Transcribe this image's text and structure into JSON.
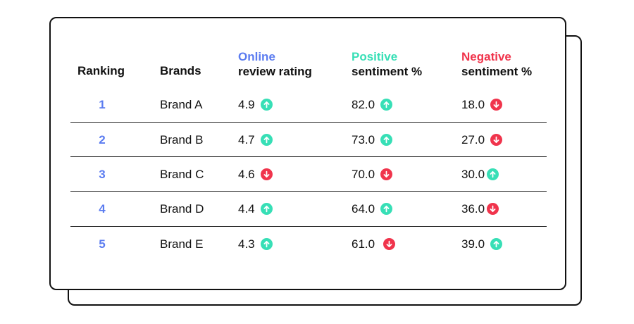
{
  "colors": {
    "rank": "#5b7cf0",
    "online_header": "#5b7cf0",
    "positive_header": "#37dfb6",
    "negative_header": "#f0344c",
    "up_indicator": "#37dfb6",
    "down_indicator": "#f0344c"
  },
  "table": {
    "headers": {
      "ranking": "Ranking",
      "brands": "Brands",
      "online_accent": "Online",
      "online_rest": "review rating",
      "positive_accent": "Positive",
      "positive_rest": "sentiment %",
      "negative_accent": "Negative",
      "negative_rest": "sentiment %"
    },
    "rows": [
      {
        "rank": "1",
        "brand": "Brand A",
        "online": "4.9",
        "online_trend": "up-arrow-icon",
        "positive": "82.0",
        "positive_trend": "up-arrow-icon",
        "negative": "18.0",
        "negative_trend": "down-arrow-icon"
      },
      {
        "rank": "2",
        "brand": "Brand B",
        "online": "4.7",
        "online_trend": "up-arrow-icon",
        "positive": "73.0",
        "positive_trend": "up-arrow-icon",
        "negative": "27.0",
        "negative_trend": "down-arrow-icon"
      },
      {
        "rank": "3",
        "brand": "Brand C",
        "online": "4.6",
        "online_trend": "down-arrow-icon",
        "positive": "70.0",
        "positive_trend": "down-arrow-icon",
        "negative": "30.0",
        "negative_trend": "up-arrow-icon"
      },
      {
        "rank": "4",
        "brand": "Brand D",
        "online": "4.4",
        "online_trend": "up-arrow-icon",
        "positive": "64.0",
        "positive_trend": "up-arrow-icon",
        "negative": "36.0",
        "negative_trend": "down-arrow-icon"
      },
      {
        "rank": "5",
        "brand": "Brand E",
        "online": "4.3",
        "online_trend": "up-arrow-icon",
        "positive": "61.0",
        "positive_trend": "down-arrow-icon",
        "negative": "39.0",
        "negative_trend": "up-arrow-icon"
      }
    ]
  }
}
